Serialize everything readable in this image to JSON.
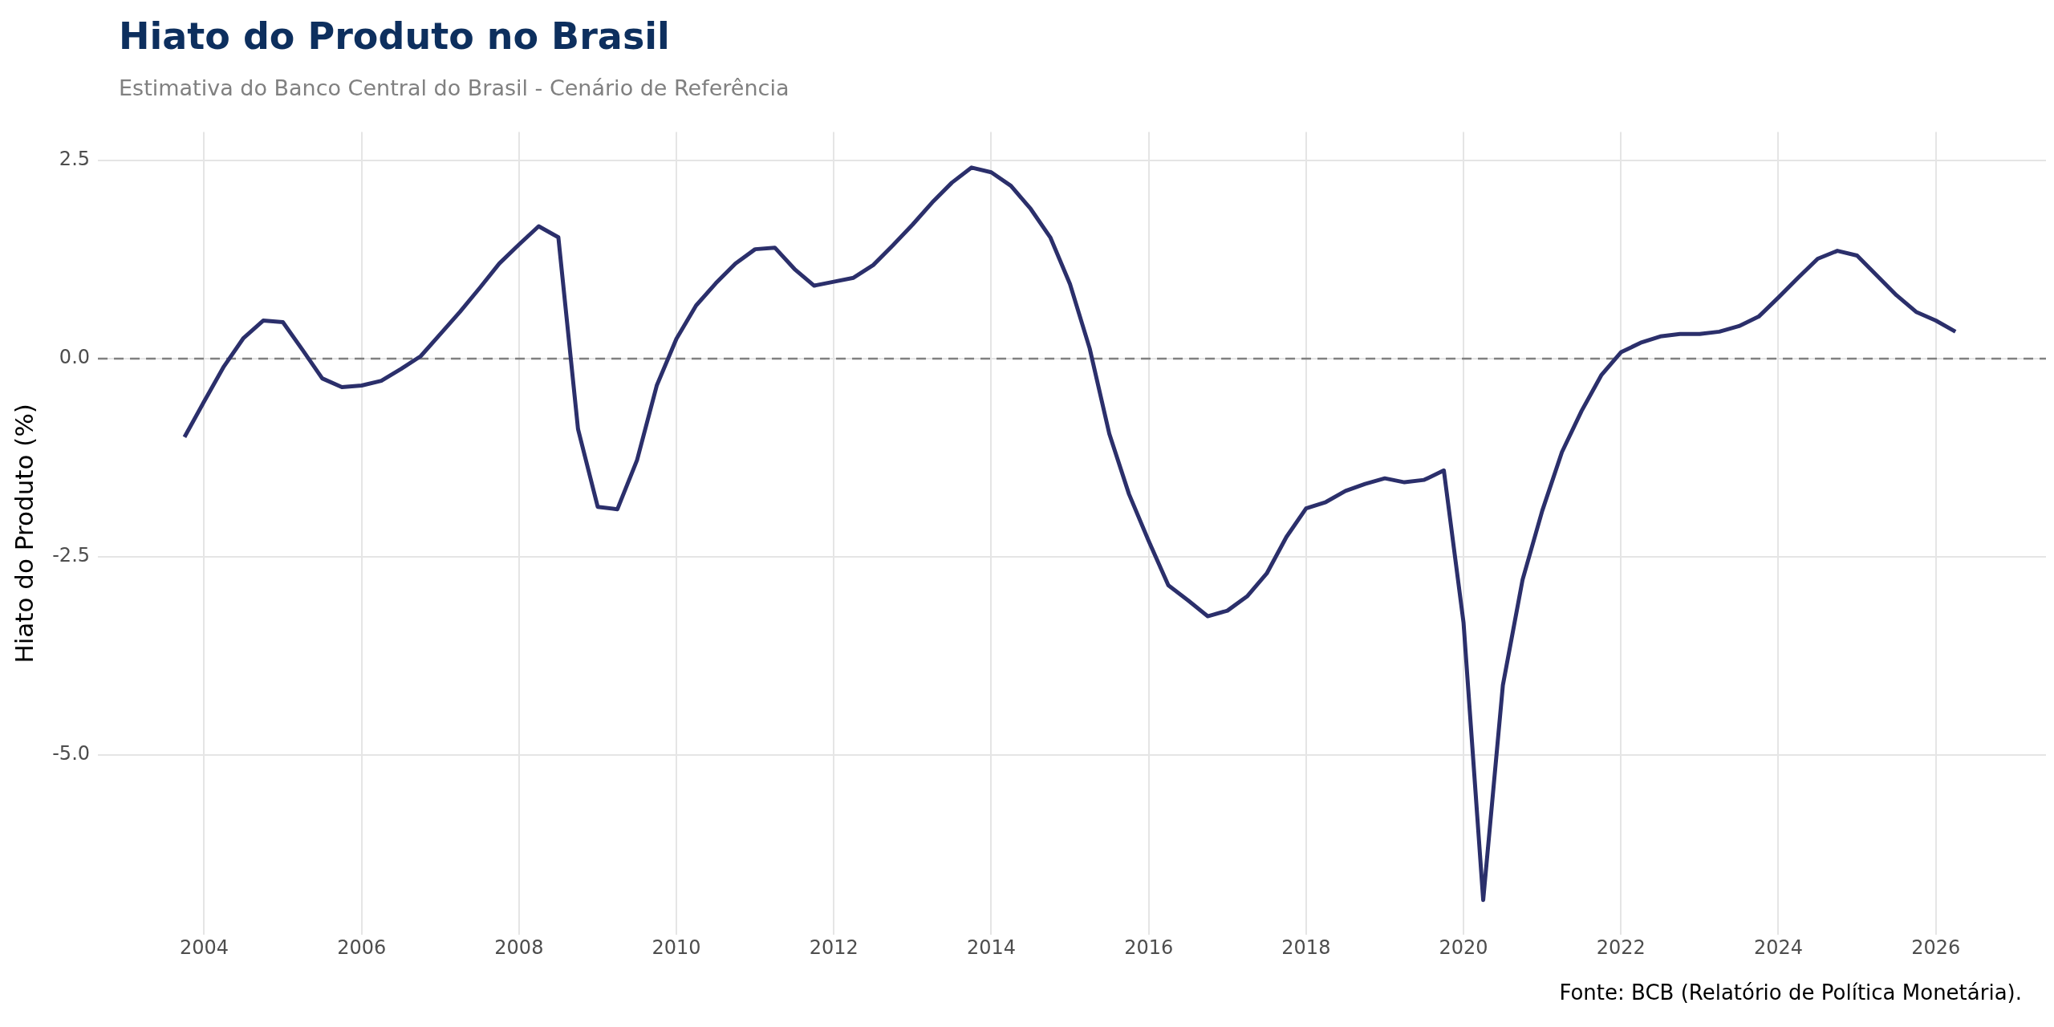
{
  "chart_data": {
    "type": "line",
    "title": "Hiato do Produto no Brasil",
    "subtitle": "Estimativa do Banco Central do Brasil - Cenário de Referência",
    "ylabel": "Hiato do Produto (%)",
    "annotations": [
      "Fonte: BCB (Relatório de Política Monetária)."
    ],
    "x": [
      2003.75,
      2004,
      2004.25,
      2004.5,
      2004.75,
      2005,
      2005.25,
      2005.5,
      2005.75,
      2006,
      2006.25,
      2006.5,
      2006.75,
      2007,
      2007.25,
      2007.5,
      2007.75,
      2008,
      2008.25,
      2008.5,
      2008.75,
      2009,
      2009.25,
      2009.5,
      2009.75,
      2010,
      2010.25,
      2010.5,
      2010.75,
      2011,
      2011.25,
      2011.5,
      2011.75,
      2012,
      2012.25,
      2012.5,
      2012.75,
      2013,
      2013.25,
      2013.5,
      2013.75,
      2014,
      2014.25,
      2014.5,
      2014.75,
      2015,
      2015.25,
      2015.5,
      2015.75,
      2016,
      2016.25,
      2016.5,
      2016.75,
      2017,
      2017.25,
      2017.5,
      2017.75,
      2018,
      2018.25,
      2018.5,
      2018.75,
      2019,
      2019.25,
      2019.5,
      2019.75,
      2020,
      2020.25,
      2020.5,
      2020.75,
      2021,
      2021.25,
      2021.5,
      2021.75,
      2022,
      2022.25,
      2022.5,
      2022.75,
      2023,
      2023.25,
      2023.5,
      2023.75,
      2024,
      2024.25,
      2024.5,
      2024.75,
      2025,
      2025.25,
      2025.5,
      2025.75,
      2026,
      2026.25
    ],
    "series": [
      {
        "color": "#2b2f6b",
        "values": [
          -0.99,
          -0.54,
          -0.1,
          0.26,
          0.48,
          0.46,
          0.11,
          -0.25,
          -0.36,
          -0.34,
          -0.28,
          -0.13,
          0.03,
          0.31,
          0.59,
          0.89,
          1.2,
          1.44,
          1.67,
          1.53,
          -0.89,
          -1.87,
          -1.9,
          -1.28,
          -0.34,
          0.25,
          0.67,
          0.95,
          1.2,
          1.38,
          1.4,
          1.13,
          0.92,
          0.97,
          1.02,
          1.18,
          1.43,
          1.69,
          1.97,
          2.22,
          2.41,
          2.35,
          2.18,
          1.89,
          1.53,
          0.94,
          0.13,
          -0.95,
          -1.71,
          -2.3,
          -2.86,
          -3.05,
          -3.25,
          -3.18,
          -3.0,
          -2.71,
          -2.25,
          -1.89,
          -1.81,
          -1.67,
          -1.58,
          -1.51,
          -1.56,
          -1.53,
          -1.41,
          -3.33,
          -6.83,
          -4.12,
          -2.79,
          -1.92,
          -1.18,
          -0.66,
          -0.21,
          0.08,
          0.2,
          0.28,
          0.31,
          0.31,
          0.34,
          0.41,
          0.53,
          0.77,
          1.02,
          1.26,
          1.36,
          1.3,
          1.05,
          0.8,
          0.59,
          0.48,
          0.34
        ]
      }
    ],
    "xlim": [
      2002.65,
      2027.4
    ],
    "xticks": [
      2004,
      2006,
      2008,
      2010,
      2012,
      2014,
      2016,
      2018,
      2020,
      2022,
      2024,
      2026
    ],
    "ylim": [
      -7.27,
      2.86
    ],
    "yticks": [
      {
        "value": 2.5,
        "label": "2.5"
      },
      {
        "value": 0,
        "label": "0.0"
      },
      {
        "value": -2.5,
        "label": "-2.5"
      },
      {
        "value": -5,
        "label": "-5.0"
      }
    ],
    "ref_lines": [
      {
        "axis": "y",
        "value": 0,
        "color": "#808080",
        "line_style": "dashed"
      }
    ],
    "grid": true,
    "legend": false,
    "marker": "none",
    "line_style": "solid"
  }
}
